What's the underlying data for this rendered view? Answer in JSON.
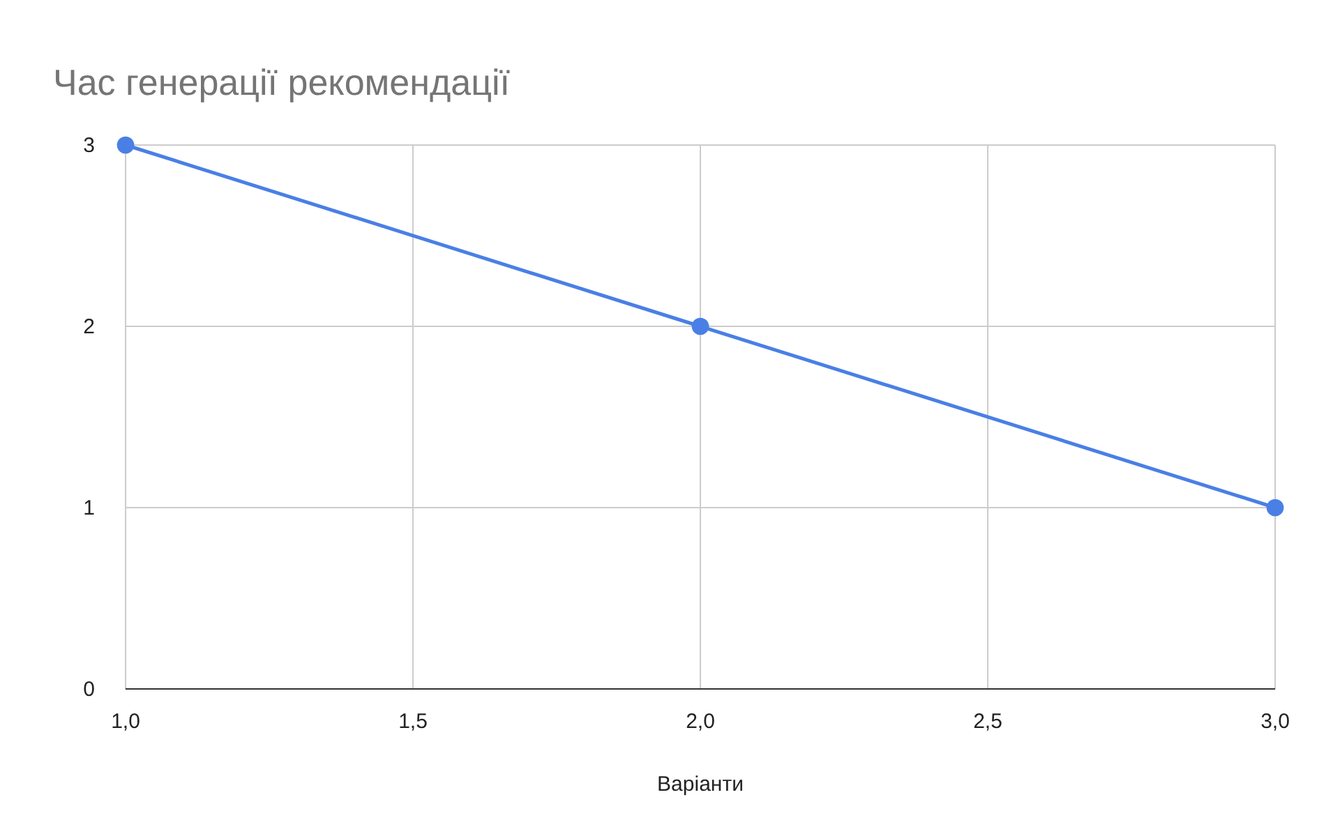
{
  "chart_data": {
    "type": "line",
    "title": "Час генерації рекомендації",
    "xlabel": "Варіанти",
    "x": [
      1,
      2,
      3
    ],
    "series": [
      {
        "color": "#4a7fe5",
        "values": [
          3,
          2,
          1
        ]
      }
    ],
    "xlim": [
      1,
      3
    ],
    "xticks": [
      {
        "value": 1,
        "label": "1,0"
      },
      {
        "value": 1.5,
        "label": "1,5"
      },
      {
        "value": 2,
        "label": "2,0"
      },
      {
        "value": 2.5,
        "label": "2,5"
      },
      {
        "value": 3,
        "label": "3,0"
      }
    ],
    "ylim": [
      0,
      3
    ],
    "yticks": [
      0,
      1,
      2,
      3
    ],
    "grid": true,
    "marker": "circle",
    "line_style": "solid"
  }
}
